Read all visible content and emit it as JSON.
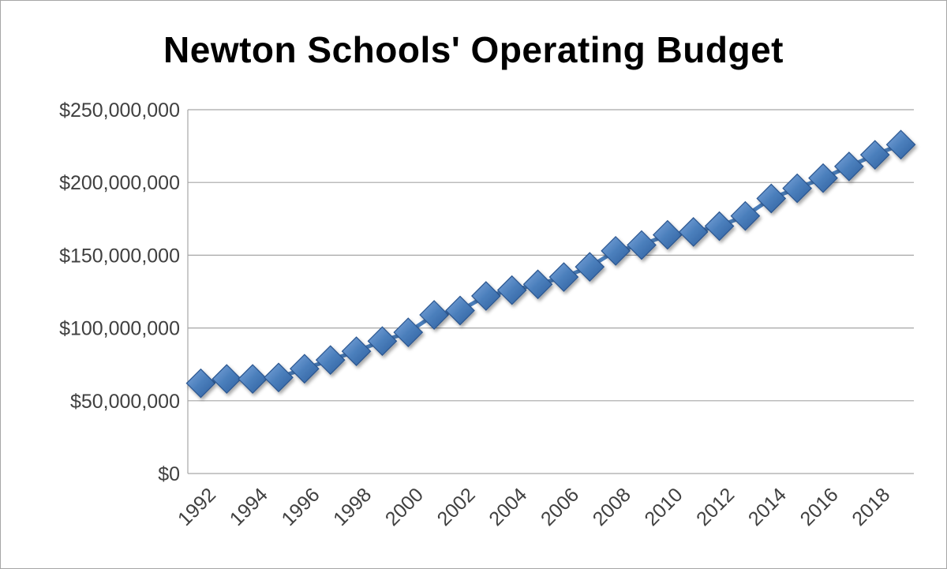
{
  "chart_data": {
    "type": "line",
    "title": "Newton Schools' Operating Budget",
    "xlabel": "",
    "ylabel": "",
    "ylim": [
      0,
      250000000
    ],
    "y_ticks": [
      "$0",
      "$50,000,000",
      "$100,000,000",
      "$150,000,000",
      "$200,000,000",
      "$250,000,000"
    ],
    "x_tick_labels": [
      "1992",
      "1994",
      "1996",
      "1998",
      "2000",
      "2002",
      "2004",
      "2006",
      "2008",
      "2010",
      "2012",
      "2014",
      "2016",
      "2018"
    ],
    "grid": true,
    "legend": "none",
    "marker": "diamond",
    "colors": {
      "series": "#4a7ebb",
      "series_edge": "#2c5690",
      "gridline": "#a6a6a6"
    },
    "series": [
      {
        "x": [
          1992,
          1993,
          1994,
          1995,
          1996,
          1997,
          1998,
          1999,
          2000,
          2001,
          2002,
          2003,
          2004,
          2005,
          2006,
          2007,
          2008,
          2009,
          2010,
          2011,
          2012,
          2013,
          2014,
          2015,
          2016,
          2017,
          2018,
          2019
        ],
        "values": [
          62000000,
          65000000,
          65000000,
          66000000,
          72000000,
          78000000,
          84000000,
          91000000,
          97000000,
          109000000,
          112000000,
          122000000,
          126000000,
          130000000,
          135000000,
          142000000,
          153000000,
          157000000,
          164000000,
          166000000,
          170000000,
          177000000,
          189000000,
          196000000,
          203000000,
          211000000,
          219000000,
          226000000
        ]
      }
    ]
  }
}
